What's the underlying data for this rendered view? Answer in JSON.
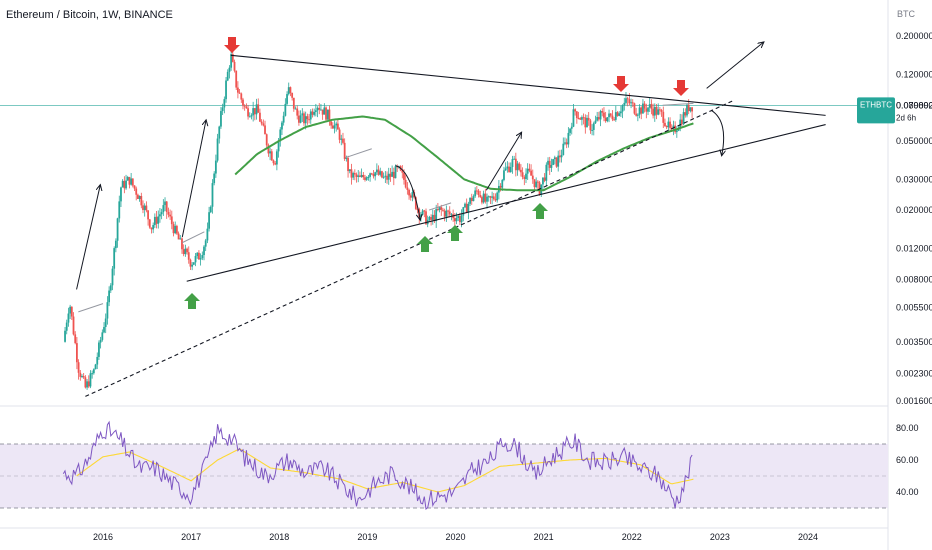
{
  "header": {
    "title": "Ethereum / Bitcoin, 1W, BINANCE",
    "currency_label": "BTC"
  },
  "price_badge": {
    "symbol": "ETHBTC",
    "price": "0.079892",
    "countdown": "2d 6h",
    "color": "#26a69a"
  },
  "colors": {
    "up": "#26a69a",
    "down": "#ef5350",
    "ma": "#43a047",
    "rsi": "#7e57c2",
    "rsi_ma": "#fdd835",
    "rsi_band": "#ede7f6",
    "trendline": "#131722",
    "sell_arrow": "#e53935",
    "buy_arrow": "#43a047"
  },
  "chart_data": {
    "type": "candlestick",
    "scale": "log",
    "x_labels": [
      "2016",
      "2017",
      "2018",
      "2019",
      "2020",
      "2021",
      "2022",
      "2023",
      "2024"
    ],
    "price_ticks": [
      "0.200000",
      "0.120000",
      "0.080000",
      "0.050000",
      "0.030000",
      "0.020000",
      "0.012000",
      "0.008000",
      "0.005500",
      "0.003500",
      "0.002300",
      "0.001600"
    ],
    "price_keypoints": [
      [
        2015.55,
        0.0035
      ],
      [
        2015.62,
        0.006
      ],
      [
        2015.72,
        0.0025
      ],
      [
        2015.8,
        0.0019
      ],
      [
        2015.9,
        0.0024
      ],
      [
        2016.05,
        0.0055
      ],
      [
        2016.13,
        0.012
      ],
      [
        2016.2,
        0.027
      ],
      [
        2016.3,
        0.03
      ],
      [
        2016.45,
        0.022
      ],
      [
        2016.55,
        0.016
      ],
      [
        2016.7,
        0.021
      ],
      [
        2016.9,
        0.012
      ],
      [
        2017.0,
        0.01
      ],
      [
        2017.1,
        0.011
      ],
      [
        2017.18,
        0.014
      ],
      [
        2017.25,
        0.03
      ],
      [
        2017.32,
        0.06
      ],
      [
        2017.4,
        0.11
      ],
      [
        2017.45,
        0.155
      ],
      [
        2017.52,
        0.1
      ],
      [
        2017.62,
        0.075
      ],
      [
        2017.75,
        0.075
      ],
      [
        2017.88,
        0.045
      ],
      [
        2017.95,
        0.038
      ],
      [
        2018.1,
        0.1
      ],
      [
        2018.2,
        0.07
      ],
      [
        2018.3,
        0.065
      ],
      [
        2018.42,
        0.082
      ],
      [
        2018.55,
        0.07
      ],
      [
        2018.68,
        0.055
      ],
      [
        2018.8,
        0.032
      ],
      [
        2018.92,
        0.03
      ],
      [
        2019.05,
        0.034
      ],
      [
        2019.2,
        0.03
      ],
      [
        2019.35,
        0.034
      ],
      [
        2019.45,
        0.028
      ],
      [
        2019.58,
        0.02
      ],
      [
        2019.7,
        0.017
      ],
      [
        2019.82,
        0.02
      ],
      [
        2019.92,
        0.019
      ],
      [
        2020.05,
        0.018
      ],
      [
        2020.15,
        0.022
      ],
      [
        2020.25,
        0.026
      ],
      [
        2020.35,
        0.022
      ],
      [
        2020.45,
        0.024
      ],
      [
        2020.55,
        0.033
      ],
      [
        2020.65,
        0.038
      ],
      [
        2020.75,
        0.033
      ],
      [
        2020.85,
        0.032
      ],
      [
        2020.95,
        0.026
      ],
      [
        2021.05,
        0.036
      ],
      [
        2021.15,
        0.038
      ],
      [
        2021.25,
        0.048
      ],
      [
        2021.35,
        0.075
      ],
      [
        2021.45,
        0.065
      ],
      [
        2021.55,
        0.06
      ],
      [
        2021.65,
        0.07
      ],
      [
        2021.75,
        0.068
      ],
      [
        2021.85,
        0.075
      ],
      [
        2021.95,
        0.085
      ],
      [
        2022.05,
        0.075
      ],
      [
        2022.2,
        0.078
      ],
      [
        2022.35,
        0.07
      ],
      [
        2022.45,
        0.055
      ],
      [
        2022.55,
        0.065
      ],
      [
        2022.65,
        0.079
      ],
      [
        2022.7,
        0.0799
      ]
    ],
    "ma_keypoints": [
      [
        2017.5,
        0.032
      ],
      [
        2017.75,
        0.042
      ],
      [
        2018.0,
        0.05
      ],
      [
        2018.3,
        0.06
      ],
      [
        2018.6,
        0.066
      ],
      [
        2018.95,
        0.069
      ],
      [
        2019.2,
        0.066
      ],
      [
        2019.5,
        0.053
      ],
      [
        2019.8,
        0.04
      ],
      [
        2020.1,
        0.03
      ],
      [
        2020.4,
        0.0265
      ],
      [
        2020.7,
        0.026
      ],
      [
        2021.0,
        0.026
      ],
      [
        2021.3,
        0.031
      ],
      [
        2021.6,
        0.038
      ],
      [
        2021.9,
        0.045
      ],
      [
        2022.2,
        0.052
      ],
      [
        2022.5,
        0.058
      ],
      [
        2022.7,
        0.063
      ]
    ],
    "trendlines": [
      {
        "kind": "resistance",
        "from": [
          2017.45,
          0.155
        ],
        "to": [
          2024.2,
          0.07
        ]
      },
      {
        "kind": "support",
        "from": [
          2016.95,
          0.0078
        ],
        "to": [
          2024.2,
          0.062
        ]
      },
      {
        "kind": "support-dashed",
        "from": [
          2015.8,
          0.0017
        ],
        "to": [
          2023.15,
          0.085
        ]
      }
    ],
    "rsi": {
      "ticks": [
        "80.00",
        "60.00",
        "40.00"
      ],
      "overbought": 70,
      "oversold": 30,
      "keypoints": [
        [
          2015.55,
          52
        ],
        [
          2015.7,
          50
        ],
        [
          2015.85,
          62
        ],
        [
          2016.0,
          80
        ],
        [
          2016.1,
          77
        ],
        [
          2016.2,
          72
        ],
        [
          2016.4,
          55
        ],
        [
          2016.6,
          55
        ],
        [
          2016.8,
          45
        ],
        [
          2017.0,
          38
        ],
        [
          2017.15,
          55
        ],
        [
          2017.3,
          78
        ],
        [
          2017.45,
          74
        ],
        [
          2017.6,
          62
        ],
        [
          2017.85,
          50
        ],
        [
          2018.1,
          60
        ],
        [
          2018.3,
          52
        ],
        [
          2018.5,
          55
        ],
        [
          2018.7,
          45
        ],
        [
          2018.9,
          35
        ],
        [
          2019.1,
          46
        ],
        [
          2019.3,
          52
        ],
        [
          2019.5,
          42
        ],
        [
          2019.65,
          35
        ],
        [
          2019.85,
          38
        ],
        [
          2020.0,
          40
        ],
        [
          2020.2,
          54
        ],
        [
          2020.4,
          60
        ],
        [
          2020.55,
          72
        ],
        [
          2020.7,
          68
        ],
        [
          2020.9,
          50
        ],
        [
          2021.1,
          62
        ],
        [
          2021.35,
          72
        ],
        [
          2021.5,
          60
        ],
        [
          2021.7,
          58
        ],
        [
          2021.9,
          62
        ],
        [
          2022.1,
          55
        ],
        [
          2022.3,
          50
        ],
        [
          2022.5,
          34
        ],
        [
          2022.6,
          45
        ],
        [
          2022.7,
          62
        ]
      ],
      "ma_keypoints": [
        [
          2015.7,
          50
        ],
        [
          2016.0,
          62
        ],
        [
          2016.3,
          65
        ],
        [
          2016.7,
          55
        ],
        [
          2017.0,
          47
        ],
        [
          2017.3,
          60
        ],
        [
          2017.55,
          67
        ],
        [
          2017.9,
          55
        ],
        [
          2018.3,
          52
        ],
        [
          2018.7,
          48
        ],
        [
          2019.0,
          42
        ],
        [
          2019.4,
          46
        ],
        [
          2019.8,
          40
        ],
        [
          2020.1,
          44
        ],
        [
          2020.5,
          56
        ],
        [
          2020.9,
          58
        ],
        [
          2021.3,
          60
        ],
        [
          2021.7,
          61
        ],
        [
          2022.1,
          57
        ],
        [
          2022.45,
          45
        ],
        [
          2022.7,
          48
        ]
      ]
    }
  }
}
